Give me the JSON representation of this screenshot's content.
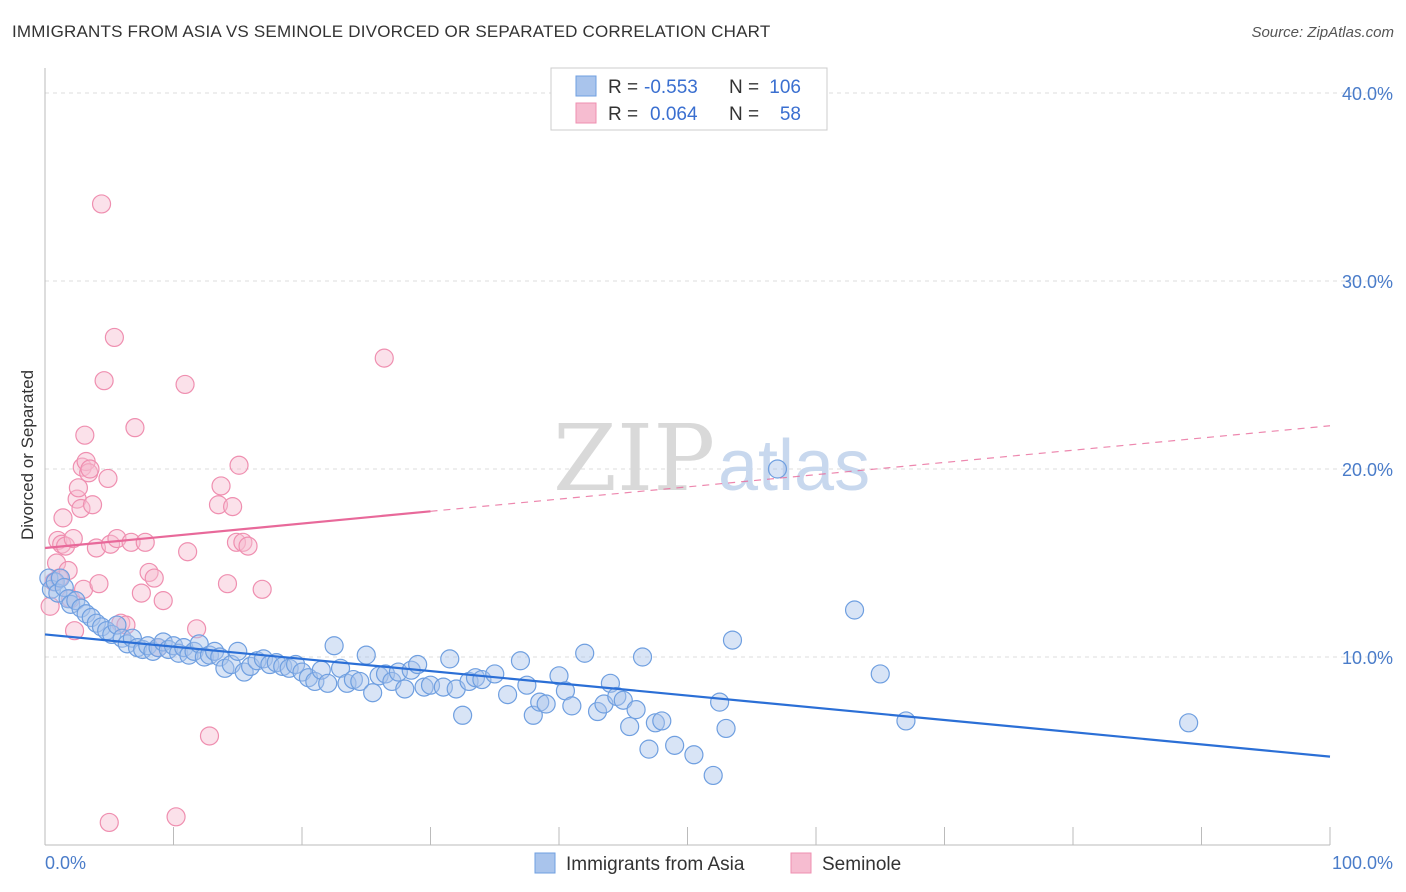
{
  "title": "IMMIGRANTS FROM ASIA VS SEMINOLE DIVORCED OR SEPARATED CORRELATION CHART",
  "source": "Source: ZipAtlas.com",
  "watermark": {
    "zip": "ZIP",
    "atlas": "atlas"
  },
  "colors": {
    "blue_fill": "#a9c4ec",
    "blue_stroke": "#6f9fe0",
    "blue_line": "#2b6fd6",
    "pink_fill": "#f6bcd0",
    "pink_stroke": "#ef8fb0",
    "pink_line": "#e8699a",
    "grid": "#dddddd",
    "tick_text": "#4a7cc9"
  },
  "legend": {
    "rows": [
      {
        "r_label": "R =",
        "r_value": "-0.553",
        "n_label": "N =",
        "n_value": "106"
      },
      {
        "r_label": "R =",
        "r_value": "0.064",
        "n_label": "N =",
        "n_value": "58"
      }
    ]
  },
  "chart_data": {
    "type": "scatter",
    "title": "IMMIGRANTS FROM ASIA VS SEMINOLE DIVORCED OR SEPARATED CORRELATION CHART",
    "xlabel": "",
    "ylabel": "Divorced or Separated",
    "xlim": [
      0,
      100
    ],
    "ylim": [
      0,
      40
    ],
    "x_tick_labels": [
      "0.0%",
      "100.0%"
    ],
    "y_ticks": [
      10,
      20,
      30,
      40
    ],
    "y_tick_labels": [
      "10.0%",
      "20.0%",
      "30.0%",
      "40.0%"
    ],
    "grid": true,
    "legend_position": "bottom",
    "series": [
      {
        "name": "Immigrants from Asia",
        "color": "#a9c4ec",
        "trend": {
          "x0": 0,
          "y0": 11.2,
          "x1": 100,
          "y1": 4.7,
          "solid_to": 100
        },
        "points": [
          [
            0.3,
            14.2
          ],
          [
            0.5,
            13.6
          ],
          [
            0.8,
            14.0
          ],
          [
            1.0,
            13.4
          ],
          [
            1.2,
            14.2
          ],
          [
            1.5,
            13.7
          ],
          [
            1.8,
            13.1
          ],
          [
            2.0,
            12.8
          ],
          [
            2.4,
            13.0
          ],
          [
            2.8,
            12.6
          ],
          [
            3.2,
            12.3
          ],
          [
            3.6,
            12.1
          ],
          [
            4.0,
            11.8
          ],
          [
            4.4,
            11.6
          ],
          [
            4.8,
            11.4
          ],
          [
            5.2,
            11.2
          ],
          [
            5.6,
            11.7
          ],
          [
            6.0,
            11.0
          ],
          [
            6.4,
            10.7
          ],
          [
            6.8,
            11.0
          ],
          [
            7.2,
            10.5
          ],
          [
            7.6,
            10.4
          ],
          [
            8.0,
            10.6
          ],
          [
            8.4,
            10.3
          ],
          [
            8.8,
            10.5
          ],
          [
            9.2,
            10.8
          ],
          [
            9.6,
            10.4
          ],
          [
            10.0,
            10.6
          ],
          [
            10.4,
            10.2
          ],
          [
            10.8,
            10.5
          ],
          [
            11.2,
            10.1
          ],
          [
            11.6,
            10.3
          ],
          [
            12.0,
            10.7
          ],
          [
            12.4,
            10.0
          ],
          [
            12.8,
            10.1
          ],
          [
            13.2,
            10.3
          ],
          [
            13.6,
            10.0
          ],
          [
            14.0,
            9.4
          ],
          [
            14.5,
            9.6
          ],
          [
            15.0,
            10.3
          ],
          [
            15.5,
            9.2
          ],
          [
            16.0,
            9.5
          ],
          [
            16.5,
            9.8
          ],
          [
            17.0,
            9.9
          ],
          [
            17.5,
            9.6
          ],
          [
            18.0,
            9.7
          ],
          [
            18.5,
            9.5
          ],
          [
            19.0,
            9.4
          ],
          [
            19.5,
            9.6
          ],
          [
            20.0,
            9.2
          ],
          [
            20.5,
            8.9
          ],
          [
            21.0,
            8.7
          ],
          [
            21.5,
            9.3
          ],
          [
            22.0,
            8.6
          ],
          [
            22.5,
            10.6
          ],
          [
            23.0,
            9.4
          ],
          [
            23.5,
            8.6
          ],
          [
            24.0,
            8.8
          ],
          [
            24.5,
            8.7
          ],
          [
            25.0,
            10.1
          ],
          [
            25.5,
            8.1
          ],
          [
            26.0,
            9.0
          ],
          [
            26.5,
            9.1
          ],
          [
            27.0,
            8.7
          ],
          [
            27.5,
            9.2
          ],
          [
            28.0,
            8.3
          ],
          [
            28.5,
            9.3
          ],
          [
            29.0,
            9.6
          ],
          [
            29.5,
            8.4
          ],
          [
            30.0,
            8.5
          ],
          [
            31.0,
            8.4
          ],
          [
            31.5,
            9.9
          ],
          [
            32.0,
            8.3
          ],
          [
            32.5,
            6.9
          ],
          [
            33.0,
            8.7
          ],
          [
            33.5,
            8.9
          ],
          [
            34.0,
            8.8
          ],
          [
            35.0,
            9.1
          ],
          [
            36.0,
            8.0
          ],
          [
            37.0,
            9.8
          ],
          [
            37.5,
            8.5
          ],
          [
            38.0,
            6.9
          ],
          [
            38.5,
            7.6
          ],
          [
            39.0,
            7.5
          ],
          [
            40.0,
            9.0
          ],
          [
            40.5,
            8.2
          ],
          [
            41.0,
            7.4
          ],
          [
            42.0,
            10.2
          ],
          [
            43.0,
            7.1
          ],
          [
            43.5,
            7.5
          ],
          [
            44.0,
            8.6
          ],
          [
            44.5,
            7.9
          ],
          [
            45.0,
            7.7
          ],
          [
            45.5,
            6.3
          ],
          [
            46.0,
            7.2
          ],
          [
            46.5,
            10.0
          ],
          [
            47.0,
            5.1
          ],
          [
            47.5,
            6.5
          ],
          [
            48.0,
            6.6
          ],
          [
            49.0,
            5.3
          ],
          [
            50.5,
            4.8
          ],
          [
            52.0,
            3.7
          ],
          [
            52.5,
            7.6
          ],
          [
            53.0,
            6.2
          ],
          [
            57.0,
            20.0
          ],
          [
            63.0,
            12.5
          ],
          [
            65.0,
            9.1
          ],
          [
            67.0,
            6.6
          ],
          [
            89.0,
            6.5
          ],
          [
            53.5,
            10.9
          ]
        ]
      },
      {
        "name": "Seminole",
        "color": "#f6bcd0",
        "trend": {
          "x0": 0,
          "y0": 15.8,
          "x1": 100,
          "y1": 22.3,
          "solid_to": 30
        },
        "points": [
          [
            0.4,
            12.7
          ],
          [
            0.7,
            14.0
          ],
          [
            0.9,
            15.0
          ],
          [
            1.0,
            16.2
          ],
          [
            1.1,
            14.2
          ],
          [
            1.3,
            16.0
          ],
          [
            1.4,
            17.4
          ],
          [
            1.6,
            15.9
          ],
          [
            1.8,
            14.6
          ],
          [
            2.0,
            13.1
          ],
          [
            2.2,
            16.3
          ],
          [
            2.3,
            11.4
          ],
          [
            2.5,
            18.4
          ],
          [
            2.6,
            19.0
          ],
          [
            2.8,
            17.9
          ],
          [
            2.9,
            20.1
          ],
          [
            3.0,
            13.6
          ],
          [
            3.1,
            21.8
          ],
          [
            3.2,
            20.4
          ],
          [
            3.4,
            19.8
          ],
          [
            3.5,
            20.0
          ],
          [
            3.7,
            18.1
          ],
          [
            4.0,
            15.8
          ],
          [
            4.2,
            13.9
          ],
          [
            4.4,
            34.1
          ],
          [
            4.6,
            24.7
          ],
          [
            4.9,
            19.5
          ],
          [
            5.1,
            16.0
          ],
          [
            5.4,
            27.0
          ],
          [
            5.6,
            16.3
          ],
          [
            5.9,
            11.8
          ],
          [
            6.3,
            11.7
          ],
          [
            6.7,
            16.1
          ],
          [
            7.0,
            22.2
          ],
          [
            7.5,
            13.4
          ],
          [
            7.8,
            16.1
          ],
          [
            8.1,
            14.5
          ],
          [
            8.5,
            14.2
          ],
          [
            8.8,
            10.5
          ],
          [
            9.2,
            13.0
          ],
          [
            10.9,
            24.5
          ],
          [
            11.1,
            15.6
          ],
          [
            11.8,
            11.5
          ],
          [
            12.8,
            5.8
          ],
          [
            13.5,
            18.1
          ],
          [
            13.7,
            19.1
          ],
          [
            14.2,
            13.9
          ],
          [
            14.6,
            18.0
          ],
          [
            14.9,
            16.1
          ],
          [
            15.1,
            20.2
          ],
          [
            15.4,
            16.1
          ],
          [
            15.8,
            15.9
          ],
          [
            16.9,
            13.6
          ],
          [
            26.4,
            25.9
          ],
          [
            5.0,
            1.2
          ],
          [
            10.2,
            1.5
          ]
        ]
      }
    ]
  },
  "bottom_legend": {
    "items": [
      {
        "label": "Immigrants from Asia"
      },
      {
        "label": "Seminole"
      }
    ]
  }
}
